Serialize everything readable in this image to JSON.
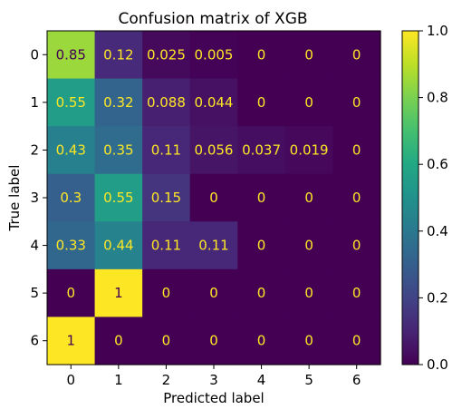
{
  "chart_data": {
    "type": "heatmap",
    "title": "Confusion matrix of XGB",
    "xlabel": "Predicted label",
    "ylabel": "True label",
    "x_categories": [
      "0",
      "1",
      "2",
      "3",
      "4",
      "5",
      "6"
    ],
    "y_categories": [
      "0",
      "1",
      "2",
      "3",
      "4",
      "5",
      "6"
    ],
    "values": [
      [
        0.85,
        0.12,
        0.025,
        0.005,
        0,
        0,
        0
      ],
      [
        0.55,
        0.32,
        0.088,
        0.044,
        0,
        0,
        0
      ],
      [
        0.43,
        0.35,
        0.11,
        0.056,
        0.037,
        0.019,
        0
      ],
      [
        0.3,
        0.55,
        0.15,
        0,
        0,
        0,
        0
      ],
      [
        0.33,
        0.44,
        0.11,
        0.11,
        0,
        0,
        0
      ],
      [
        0,
        1,
        0,
        0,
        0,
        0,
        0
      ],
      [
        1,
        0,
        0,
        0,
        0,
        0,
        0
      ]
    ],
    "cell_labels": [
      [
        "0.85",
        "0.12",
        "0.025",
        "0.005",
        "0",
        "0",
        "0"
      ],
      [
        "0.55",
        "0.32",
        "0.088",
        "0.044",
        "0",
        "0",
        "0"
      ],
      [
        "0.43",
        "0.35",
        "0.11",
        "0.056",
        "0.037",
        "0.019",
        "0"
      ],
      [
        "0.3",
        "0.55",
        "0.15",
        "0",
        "0",
        "0",
        "0"
      ],
      [
        "0.33",
        "0.44",
        "0.11",
        "0.11",
        "0",
        "0",
        "0"
      ],
      [
        "0",
        "1",
        "0",
        "0",
        "0",
        "0",
        "0"
      ],
      [
        "1",
        "0",
        "0",
        "0",
        "0",
        "0",
        "0"
      ]
    ],
    "colorbar": {
      "range": [
        0,
        1
      ],
      "ticks": [
        0.0,
        0.2,
        0.4,
        0.6,
        0.8,
        1.0
      ],
      "tick_labels": [
        "0.0",
        "0.2",
        "0.4",
        "0.6",
        "0.8",
        "1.0"
      ]
    },
    "colormap": "viridis",
    "grid": false,
    "colors": {
      "text_on_dark": "#fde725",
      "text_on_light": "#440154"
    }
  }
}
